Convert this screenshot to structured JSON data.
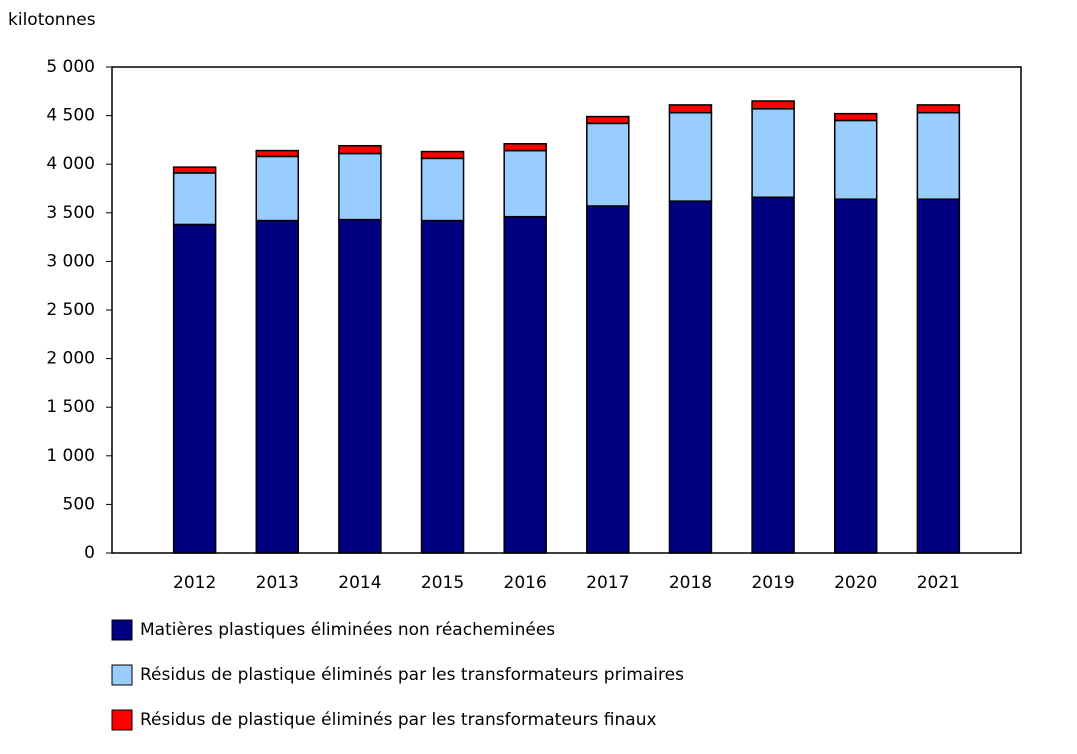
{
  "chart_data": {
    "type": "stacked-bar",
    "y_label": "kilotonnes",
    "categories": [
      "2012",
      "2013",
      "2014",
      "2015",
      "2016",
      "2017",
      "2018",
      "2019",
      "2020",
      "2021"
    ],
    "series": [
      {
        "name": "Matières plastiques éliminées non réacheminées",
        "color": "#000080",
        "values": [
          3380,
          3420,
          3430,
          3420,
          3460,
          3570,
          3620,
          3660,
          3640,
          3640
        ]
      },
      {
        "name": "Résidus de plastique éliminés par les transformateurs primaires",
        "color": "#99ccff",
        "values": [
          530,
          660,
          680,
          640,
          680,
          850,
          910,
          910,
          810,
          890
        ]
      },
      {
        "name": "Résidus de plastique éliminés par les transformateurs finaux",
        "color": "#ff0000",
        "values": [
          60,
          60,
          80,
          70,
          70,
          70,
          80,
          80,
          70,
          80
        ]
      }
    ],
    "ylim": [
      0,
      5000
    ],
    "yticks": [
      0,
      500,
      {
        "value": 1000,
        "label": "1 000"
      },
      {
        "value": 1500,
        "label": "1 500"
      },
      {
        "value": 2000,
        "label": "2 000"
      },
      {
        "value": 2500,
        "label": "2 500"
      },
      {
        "value": 3000,
        "label": "3 000"
      },
      {
        "value": 3500,
        "label": "3 500"
      },
      {
        "value": 4000,
        "label": "4 000"
      },
      {
        "value": 4500,
        "label": "4 500"
      },
      {
        "value": 5000,
        "label": "5 000"
      }
    ]
  }
}
